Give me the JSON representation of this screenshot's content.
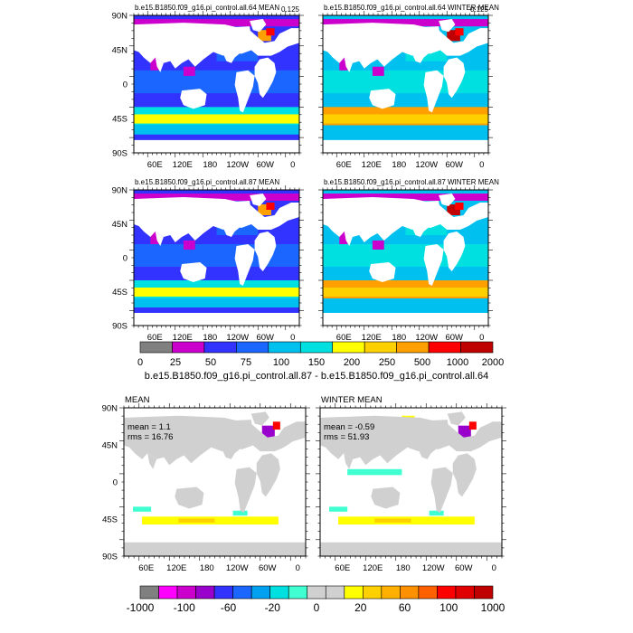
{
  "panels": [
    {
      "id": "p1",
      "title": "b.e15.B1850.f09_g16.pi_control.all.64 MEAN",
      "right_label": "0.125",
      "lat_labels": [
        "90N",
        "45N",
        "0",
        "45S",
        "90S"
      ],
      "lon_labels": [
        "60E",
        "120E",
        "180",
        "120W",
        "60W",
        "0"
      ]
    },
    {
      "id": "p2",
      "title": "b.e15.B1850.f09_g16.pi_control.all.64 WINTER MEAN",
      "right_label": "0.125",
      "lat_labels": [],
      "lon_labels": [
        "60E",
        "120E",
        "180",
        "120W",
        "60W",
        "0"
      ]
    },
    {
      "id": "p3",
      "title": "b.e15.B1850.f09_g16.pi_control.all.87 MEAN",
      "right_label": "",
      "lat_labels": [
        "90N",
        "45N",
        "0",
        "45S",
        "90S"
      ],
      "lon_labels": [
        "60E",
        "120E",
        "180",
        "120W",
        "60W",
        "0"
      ]
    },
    {
      "id": "p4",
      "title": "b.e15.B1850.f09_g16.pi_control.all.87 WINTER MEAN",
      "right_label": "",
      "lat_labels": [],
      "lon_labels": [
        "60E",
        "120E",
        "180",
        "120W",
        "60W",
        "0"
      ]
    },
    {
      "id": "p5",
      "title": "MEAN",
      "stats": [
        "mean = 1.1",
        "rms = 16.76"
      ],
      "lat_labels": [
        "90N",
        "45N",
        "0",
        "45S",
        "90S"
      ],
      "lon_labels": [
        "60E",
        "120E",
        "180",
        "120W",
        "60W",
        "0"
      ]
    },
    {
      "id": "p6",
      "title": "WINTER MEAN",
      "stats": [
        "mean = -0.59",
        "rms = 51.93"
      ],
      "lat_labels": [],
      "lon_labels": [
        "60E",
        "120E",
        "180",
        "120W",
        "60W",
        "0"
      ]
    }
  ],
  "colorbar_top": {
    "labels": [
      "0",
      "25",
      "50",
      "75",
      "100",
      "150",
      "200",
      "250",
      "500",
      "1000",
      "2000"
    ],
    "colors": [
      "#808080",
      "#cc00cc",
      "#3333ff",
      "#1a66ff",
      "#00c0f0",
      "#00e0e0",
      "#ffff00",
      "#ffd000",
      "#ffa000",
      "#ff0000",
      "#c00000"
    ],
    "title": "b.e15.B1850.f09_g16.pi_control.all.87 - b.e15.B1850.f09_g16.pi_control.all.64"
  },
  "colorbar_bottom": {
    "labels": [
      "-1000",
      "-100",
      "-60",
      "-20",
      "0",
      "20",
      "60",
      "100",
      "1000"
    ],
    "colors": [
      "#808080",
      "#ff00ff",
      "#cc00cc",
      "#9900cc",
      "#3333ff",
      "#1a66ff",
      "#00a0f0",
      "#00e0e0",
      "#40ffd0",
      "#d0d0d0",
      "#d0d0d0",
      "#ffff00",
      "#ffd000",
      "#ffb000",
      "#ff9000",
      "#ff6000",
      "#ff0000",
      "#e00000",
      "#c00000"
    ]
  },
  "colors": {
    "land": "#ffffff",
    "land_diff": "#d0d0d0",
    "frame": "#000000"
  }
}
